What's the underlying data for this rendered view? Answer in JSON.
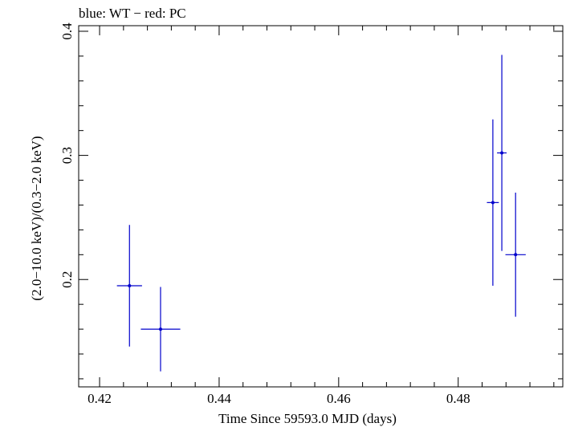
{
  "chart_data": {
    "type": "scatter",
    "title": "blue: WT − red: PC",
    "xlabel": "Time Since 59593.0 MJD (days)",
    "ylabel": "(2.0−10.0 keV)/(0.3−2.0 keV)",
    "xlim": [
      0.4165,
      0.4975
    ],
    "ylim": [
      0.1135,
      0.4045
    ],
    "x_ticks": [
      0.42,
      0.44,
      0.46,
      0.48
    ],
    "x_tick_labels": [
      "0.42",
      "0.44",
      "0.46",
      "0.48"
    ],
    "y_ticks": [
      0.2,
      0.3,
      0.4
    ],
    "y_tick_labels": [
      "0.2",
      "0.3",
      "0.4"
    ],
    "grid": false,
    "series": [
      {
        "color": "#0000cc",
        "points": [
          {
            "x": 0.425,
            "xerr": 0.0021,
            "y": 0.195,
            "yerr": 0.049
          },
          {
            "x": 0.4302,
            "xerr": 0.0033,
            "y": 0.16,
            "yerr": 0.034
          },
          {
            "x": 0.4858,
            "xerr": 0.001,
            "y": 0.262,
            "yerr": 0.067
          },
          {
            "x": 0.4873,
            "xerr": 0.0008,
            "y": 0.302,
            "yerr": 0.079
          },
          {
            "x": 0.4896,
            "xerr": 0.0017,
            "y": 0.22,
            "yerr": 0.05
          }
        ]
      }
    ]
  }
}
